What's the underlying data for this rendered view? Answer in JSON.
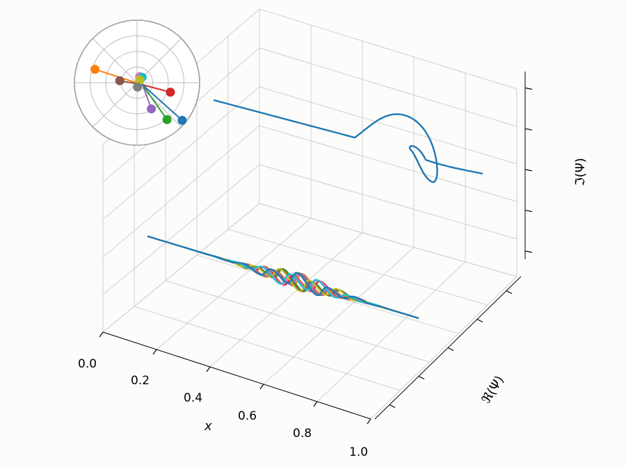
{
  "chart_data": [
    {
      "type": "line3d",
      "xlabel": "x",
      "ylabel": "ℜ(Ψ)",
      "zlabel": "ℑ(Ψ)",
      "xlim": [
        0,
        1
      ],
      "x_ticks": [
        "0.0",
        "0.2",
        "0.4",
        "0.6",
        "0.8",
        "1.0"
      ],
      "grid": true,
      "series": [
        {
          "role": "x-axis trajectories (projected onto floor plane)",
          "count": 10,
          "x_start": 0.0,
          "x_oscillation_range": [
            0.35,
            0.7
          ],
          "x_end": 1.0
        },
        {
          "role": "back-wall trajectory",
          "count": 1,
          "feature": "helical loop near x = 0.6–0.75"
        }
      ]
    },
    {
      "type": "polar",
      "role": "inset phasor diagram",
      "phasors": [
        {
          "color": "#ff7f0e",
          "angle_deg": 162,
          "magnitude": 0.8
        },
        {
          "color": "#8c564b",
          "angle_deg": 170,
          "magnitude": 0.37
        },
        {
          "color": "#e377c2",
          "angle_deg": 110,
          "magnitude": 0.14
        },
        {
          "color": "#17becf",
          "angle_deg": 93,
          "magnitude": 0.12
        },
        {
          "color": "#bcbd22",
          "angle_deg": 120,
          "magnitude": 0.09
        },
        {
          "color": "#7f7f7f",
          "angle_deg": 205,
          "magnitude": 0.09
        },
        {
          "color": "#d62728",
          "angle_deg": -15,
          "magnitude": 0.46
        },
        {
          "color": "#9467bd",
          "angle_deg": -70,
          "magnitude": 0.41
        },
        {
          "color": "#2ca02c",
          "angle_deg": -55,
          "magnitude": 0.68
        },
        {
          "color": "#1f77b4",
          "angle_deg": -42,
          "magnitude": 0.85
        }
      ],
      "rings": 4
    }
  ],
  "colors": {
    "grid": "#cfcfcf",
    "pane_line": "#b0b0b0",
    "series_blue": "#1f77b4",
    "palette": [
      "#1f77b4",
      "#ff7f0e",
      "#2ca02c",
      "#d62728",
      "#9467bd",
      "#8c564b",
      "#e377c2",
      "#7f7f7f",
      "#bcbd22",
      "#17becf"
    ]
  }
}
